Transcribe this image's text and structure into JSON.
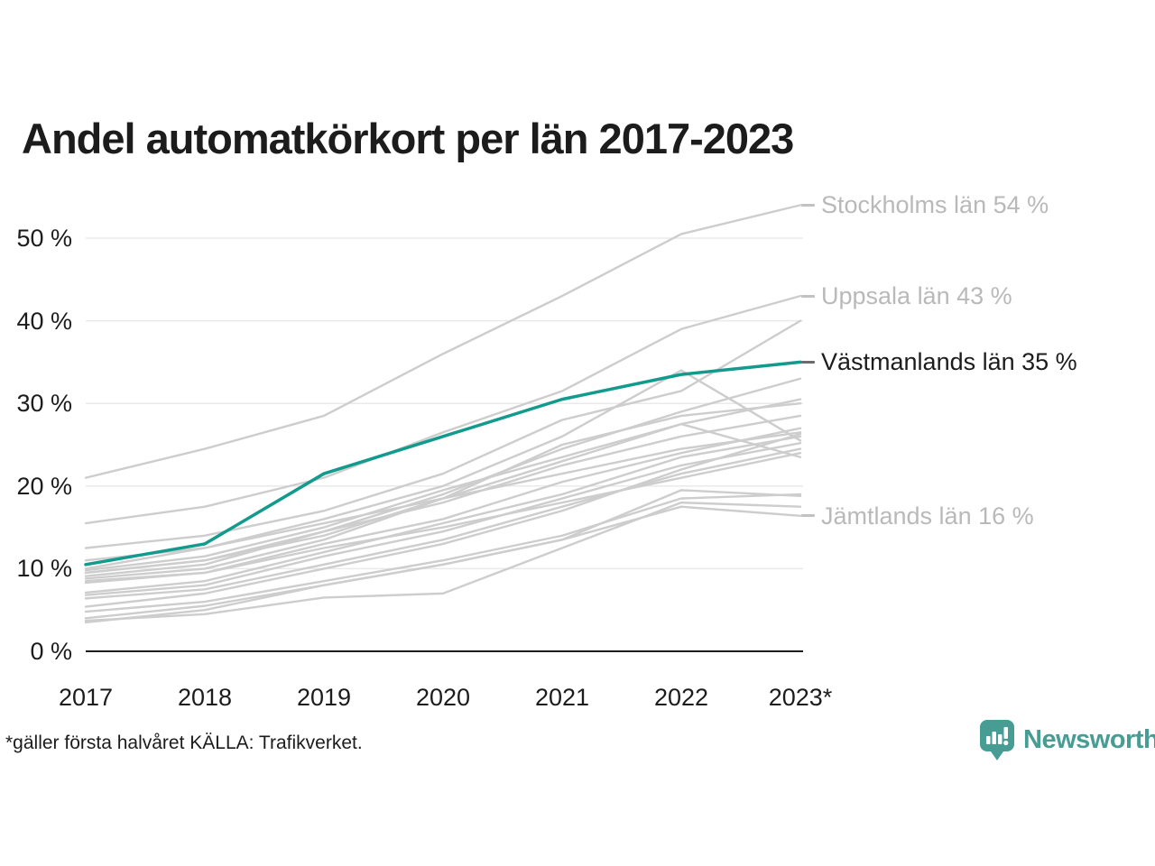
{
  "title": "Andel automatkörkort per län 2017-2023",
  "footnote": "*gäller första halvåret KÄLLA: Trafikverket.",
  "brand": {
    "name": "Newsworthy",
    "color": "#479c94"
  },
  "colors": {
    "accent_line": "#129a8c",
    "gray_line": "#cdcdcd",
    "gray_label": "#b9b9b9",
    "dark_dash": "#6b6b6b",
    "gray_dash": "#c2c2c2",
    "text": "#1c1c1c",
    "gridline": "#eaeaea",
    "axis": "#1c1c1c"
  },
  "chart_data": {
    "type": "line",
    "title": "Andel automatkörkort per län 2017-2023",
    "x": [
      2017,
      2018,
      2019,
      2020,
      2021,
      2022,
      2023
    ],
    "x_tick_labels": [
      "2017",
      "2018",
      "2019",
      "2020",
      "2021",
      "2022",
      "2023*"
    ],
    "y_ticks": [
      0,
      10,
      20,
      30,
      40,
      50
    ],
    "y_tick_suffix": " %",
    "ylim": [
      0,
      57
    ],
    "grid": "horizontal",
    "legend_position": "right-annotations",
    "series": [
      {
        "name": "Stockholms län",
        "highlight": false,
        "values": [
          21,
          24.5,
          28.5,
          36,
          43,
          50.5,
          54
        ]
      },
      {
        "name": "Uppsala län",
        "highlight": false,
        "values": [
          15.5,
          17.5,
          21,
          26.5,
          31.5,
          39,
          43
        ]
      },
      {
        "name": null,
        "highlight": false,
        "values": [
          12.5,
          14,
          17,
          21.5,
          28,
          31.5,
          40
        ]
      },
      {
        "name": null,
        "highlight": false,
        "values": [
          9.5,
          11,
          14.5,
          19,
          24.5,
          29,
          33
        ]
      },
      {
        "name": null,
        "highlight": false,
        "values": [
          9.8,
          11.5,
          15,
          19.5,
          23.5,
          27.5,
          30.5
        ]
      },
      {
        "name": null,
        "highlight": false,
        "values": [
          8.8,
          10,
          13.5,
          18.5,
          25,
          28.5,
          30
        ]
      },
      {
        "name": null,
        "highlight": false,
        "values": [
          9.1,
          10.5,
          14.5,
          18,
          22.5,
          26,
          28.5
        ]
      },
      {
        "name": null,
        "highlight": false,
        "values": [
          8.3,
          9.5,
          13,
          16,
          20.5,
          24,
          27
        ]
      },
      {
        "name": null,
        "highlight": false,
        "values": [
          7.1,
          8.5,
          12,
          15.5,
          19,
          23.5,
          26
        ]
      },
      {
        "name": null,
        "highlight": false,
        "values": [
          10,
          12.5,
          16,
          20,
          26,
          34,
          25.5
        ]
      },
      {
        "name": null,
        "highlight": false,
        "values": [
          6.8,
          8,
          11.5,
          14.5,
          18.5,
          22.5,
          25.2
        ]
      },
      {
        "name": null,
        "highlight": false,
        "values": [
          6.4,
          7.5,
          10.5,
          13.5,
          17.5,
          21.5,
          24.5
        ]
      },
      {
        "name": null,
        "highlight": false,
        "values": [
          9.5,
          11,
          14,
          18.5,
          23,
          27.5,
          23.5
        ]
      },
      {
        "name": null,
        "highlight": false,
        "values": [
          5.4,
          7,
          10,
          13,
          17,
          22,
          26.3
        ]
      },
      {
        "name": null,
        "highlight": false,
        "values": [
          4.8,
          6,
          8.5,
          11,
          14,
          18.5,
          19
        ]
      },
      {
        "name": null,
        "highlight": false,
        "values": [
          4.0,
          5.5,
          8,
          10.5,
          13.5,
          19.5,
          18.8
        ]
      },
      {
        "name": null,
        "highlight": false,
        "values": [
          3.7,
          4.5,
          6.5,
          7,
          12.5,
          18,
          17.5
        ]
      },
      {
        "name": null,
        "highlight": false,
        "values": [
          11,
          12.5,
          15.5,
          18.5,
          21.5,
          24.5,
          26.5
        ]
      },
      {
        "name": null,
        "highlight": false,
        "values": [
          8.5,
          9.5,
          12.5,
          15,
          18,
          21,
          24
        ]
      },
      {
        "name": "Jämtlands län",
        "highlight": false,
        "values": [
          3.5,
          5,
          8,
          10.5,
          13.5,
          17.5,
          16.4
        ]
      },
      {
        "name": "Västmanlands län",
        "highlight": true,
        "values": [
          10.5,
          13,
          21.5,
          26,
          30.5,
          33.5,
          35
        ]
      }
    ],
    "annotations": [
      {
        "text": "Stockholms län 54 %",
        "value": 54,
        "emphasis": false
      },
      {
        "text": "Uppsala län 43 %",
        "value": 43,
        "emphasis": false
      },
      {
        "text": "Västmanlands län 35 %",
        "value": 35,
        "emphasis": true
      },
      {
        "text": "Jämtlands län 16 %",
        "value": 16.4,
        "emphasis": false
      }
    ]
  }
}
